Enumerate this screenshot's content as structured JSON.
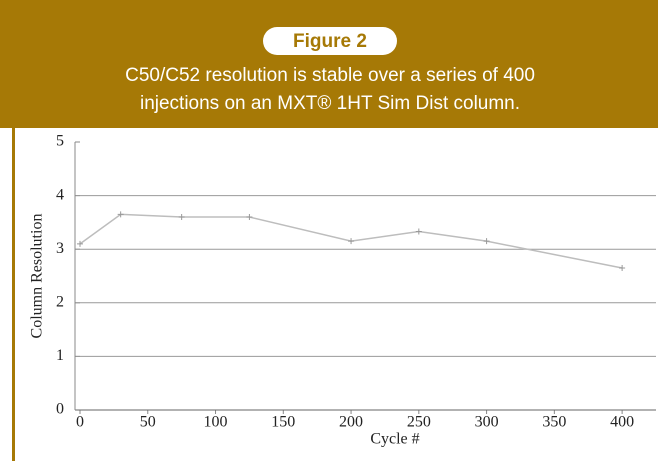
{
  "chart_data": {
    "type": "line",
    "title": "Figure 2",
    "subtitle": [
      "C50/C52 resolution is stable over a series of 400",
      "injections on an MXT® 1HT Sim Dist column."
    ],
    "x_label": "Cycle #",
    "y_label": "Column Resolution",
    "x": [
      0,
      30,
      75,
      125,
      200,
      250,
      300,
      400
    ],
    "series": [
      {
        "name": "Column Resolution",
        "color": "#bdbdbd",
        "values": [
          3.1,
          3.65,
          3.6,
          3.6,
          3.15,
          3.33,
          3.15,
          2.65
        ]
      }
    ],
    "xlim": [
      0,
      425
    ],
    "xticks": [
      0,
      50,
      100,
      150,
      200,
      250,
      300,
      350,
      400
    ],
    "ylim": [
      0,
      5
    ],
    "yticks": [
      0,
      1,
      2,
      3,
      4,
      5
    ],
    "grid": true
  }
}
